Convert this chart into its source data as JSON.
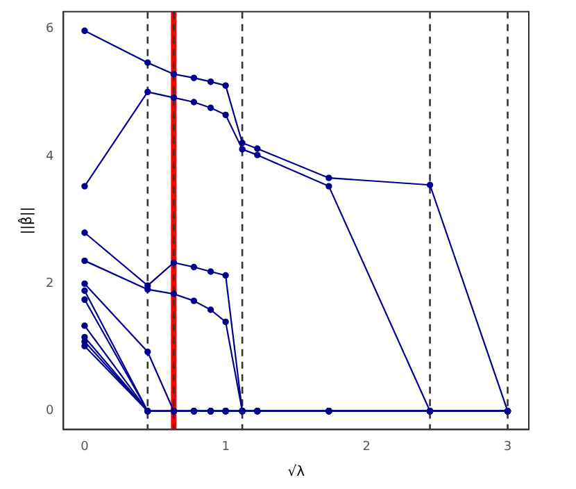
{
  "chart_data": {
    "type": "line",
    "xlabel": "√λ",
    "ylabel": "||β̂||",
    "x": [
      0,
      0.447,
      0.632,
      0.775,
      0.894,
      1.0,
      1.118,
      1.225,
      1.732,
      2.449,
      3.0
    ],
    "series": [
      {
        "color": "#00008b",
        "values": [
          5.97,
          5.47,
          5.29,
          5.23,
          5.17,
          5.11,
          4.21,
          4.12,
          3.66,
          3.55,
          0
        ]
      },
      {
        "color": "#00008b",
        "values": [
          3.53,
          5.01,
          4.92,
          4.85,
          4.76,
          4.65,
          4.11,
          4.02,
          3.53,
          0,
          0
        ]
      },
      {
        "color": "#00008b",
        "values": [
          2.8,
          1.97,
          2.33,
          2.26,
          2.19,
          2.13,
          0,
          0,
          0,
          0,
          0
        ]
      },
      {
        "color": "#00008b",
        "values": [
          2.36,
          1.91,
          1.84,
          1.73,
          1.59,
          1.4,
          0,
          0,
          0,
          0,
          0
        ]
      },
      {
        "color": "#00008b",
        "values": [
          2.0,
          0.93,
          0,
          0,
          0,
          0,
          0,
          0,
          0,
          0,
          0
        ]
      },
      {
        "color": "#00008b",
        "values": [
          1.89,
          0,
          0,
          0,
          0,
          0,
          0,
          0,
          0,
          0,
          0
        ]
      },
      {
        "color": "#00008b",
        "values": [
          1.75,
          0,
          0,
          0,
          0,
          0,
          0,
          0,
          0,
          0,
          0
        ]
      },
      {
        "color": "#00008b",
        "values": [
          1.34,
          0,
          0,
          0,
          0,
          0,
          0,
          0,
          0,
          0,
          0
        ]
      },
      {
        "color": "#00008b",
        "values": [
          1.16,
          0,
          0,
          0,
          0,
          0,
          0,
          0,
          0,
          0,
          0
        ]
      },
      {
        "color": "#00008b",
        "values": [
          1.09,
          0,
          0,
          0,
          0,
          0,
          0,
          0,
          0,
          0,
          0
        ]
      },
      {
        "color": "#00008b",
        "values": [
          1.02,
          0,
          0,
          0,
          0,
          0,
          0,
          0,
          0,
          0,
          0
        ]
      }
    ],
    "xlim": [
      -0.15,
      3.15
    ],
    "xticks": [
      0,
      1,
      2,
      3
    ],
    "ylim": [
      -0.29,
      6.27
    ],
    "yticks": [
      0,
      2,
      4,
      6
    ],
    "ref_lines": [
      {
        "axis": "x",
        "value": 0.632,
        "color": "#ff0000",
        "line_style": "solid"
      },
      {
        "axis": "x",
        "value": 0.447,
        "color": "#333333",
        "line_style": "dashed"
      },
      {
        "axis": "x",
        "value": 0.632,
        "color": "#333333",
        "line_style": "dashed"
      },
      {
        "axis": "x",
        "value": 1.118,
        "color": "#333333",
        "line_style": "dashed"
      },
      {
        "axis": "x",
        "value": 2.449,
        "color": "#333333",
        "line_style": "dashed"
      },
      {
        "axis": "x",
        "value": 3.0,
        "color": "#333333",
        "line_style": "dashed"
      }
    ],
    "grid": false,
    "legend": false,
    "marker": "circle",
    "line_style": "solid"
  }
}
